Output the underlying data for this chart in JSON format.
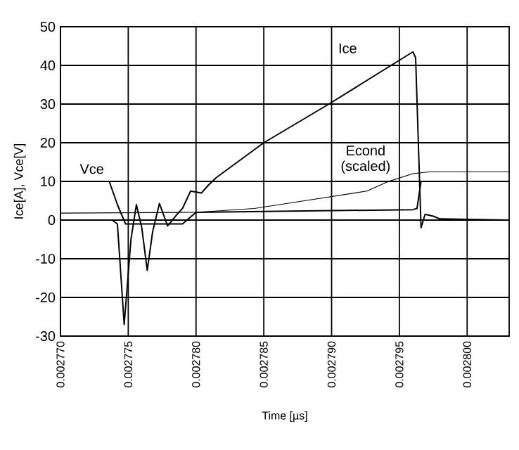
{
  "chart_data": {
    "type": "line",
    "xlabel": "Time [µs]",
    "ylabel": "Ice[A], Vce[V]",
    "xlim": [
      0.00277,
      0.0028031
    ],
    "ylim": [
      -30,
      50
    ],
    "xticks": [
      {
        "value": 0.00277,
        "label": "0.002770"
      },
      {
        "value": 0.002775,
        "label": "0.002775"
      },
      {
        "value": 0.00278,
        "label": "0.002780"
      },
      {
        "value": 0.002785,
        "label": "0.002785"
      },
      {
        "value": 0.00279,
        "label": "0.002790"
      },
      {
        "value": 0.002795,
        "label": "0.002795"
      },
      {
        "value": 0.0028,
        "label": "0.002800"
      }
    ],
    "yticks": [
      -30,
      -20,
      -10,
      0,
      10,
      20,
      30,
      40,
      50
    ],
    "grid": true,
    "legend": false,
    "marker": "none",
    "line_style": "solid",
    "series": [
      {
        "name": "Ice",
        "color": "#000000",
        "x": [
          0.00277,
          0.0027738,
          0.0027742,
          0.0027747,
          0.0027752,
          0.0027756,
          0.002776,
          0.0027764,
          0.0027768,
          0.0027773,
          0.0027779,
          0.0027786,
          0.002779,
          0.0027796,
          0.0027804,
          0.0027809,
          0.0027815,
          0.002785,
          0.0027898,
          0.002796,
          0.0027962,
          0.0027964,
          0.0027966,
          0.0027969,
          0.0027975,
          0.002798,
          0.0028031
        ],
        "values": [
          0,
          0,
          -1,
          -27,
          -5,
          4,
          -2,
          -13,
          -3,
          4.3,
          -1.5,
          1.5,
          3,
          7.5,
          7,
          9,
          11,
          20,
          30,
          43.5,
          42,
          20,
          -2,
          1.5,
          1,
          0.3,
          0
        ]
      },
      {
        "name": "Vce",
        "color": "#000000",
        "x": [
          0.00277,
          0.0027736,
          0.0027742,
          0.0027748,
          0.002779,
          0.00278,
          0.002796,
          0.0027963,
          0.0027966,
          0.0028031
        ],
        "values": [
          10,
          10,
          4,
          -1,
          -1,
          2,
          2.7,
          3,
          10,
          10
        ]
      },
      {
        "name": "Econd (scaled)",
        "color": "#000000",
        "x": [
          0.00277,
          0.00278,
          0.0027843,
          0.002788,
          0.0027926,
          0.0027942,
          0.002796,
          0.0027973,
          0.0028031
        ],
        "values": [
          1.8,
          2,
          3,
          5,
          7.5,
          10,
          12,
          12.5,
          12.5
        ]
      }
    ]
  }
}
